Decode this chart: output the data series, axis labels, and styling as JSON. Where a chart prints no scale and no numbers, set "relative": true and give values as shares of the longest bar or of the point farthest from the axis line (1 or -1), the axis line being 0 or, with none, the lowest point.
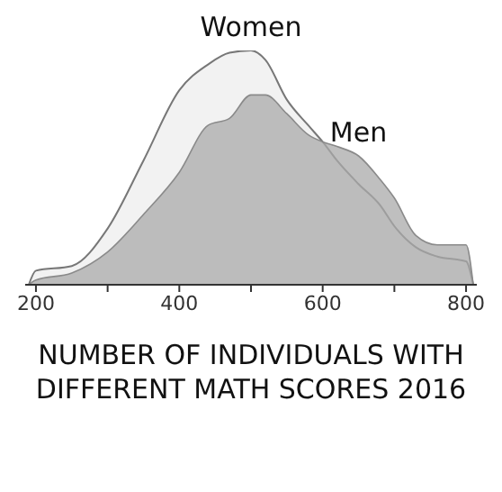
{
  "chart_data": {
    "type": "area",
    "title": "NUMBER OF INDIVIDUALS WITH DIFFERENT MATH SCORES 2016",
    "relative": true,
    "x": [
      190,
      200,
      250,
      300,
      350,
      400,
      440,
      470,
      500,
      520,
      550,
      580,
      600,
      620,
      650,
      680,
      700,
      730,
      760,
      800,
      810
    ],
    "xlim": [
      185,
      815
    ],
    "xticks": [
      200,
      {
        "value": 300,
        "label": null
      },
      400,
      {
        "value": 500,
        "label": null
      },
      600,
      {
        "value": 700,
        "label": null
      },
      800
    ],
    "series": [
      {
        "name": "Women",
        "color": "#f2f2f2",
        "values": [
          0,
          0.06,
          0.08,
          0.24,
          0.53,
          0.83,
          0.94,
          0.99,
          1,
          0.96,
          0.79,
          0.68,
          0.61,
          0.53,
          0.43,
          0.34,
          0.25,
          0.16,
          0.12,
          0.1,
          0
        ]
      },
      {
        "name": "Men",
        "color": "#a9a9a9",
        "values": [
          0,
          0.02,
          0.05,
          0.14,
          0.3,
          0.48,
          0.68,
          0.71,
          0.81,
          0.81,
          0.73,
          0.64,
          0.61,
          0.59,
          0.55,
          0.45,
          0.37,
          0.21,
          0.17,
          0.17,
          0
        ]
      }
    ]
  }
}
